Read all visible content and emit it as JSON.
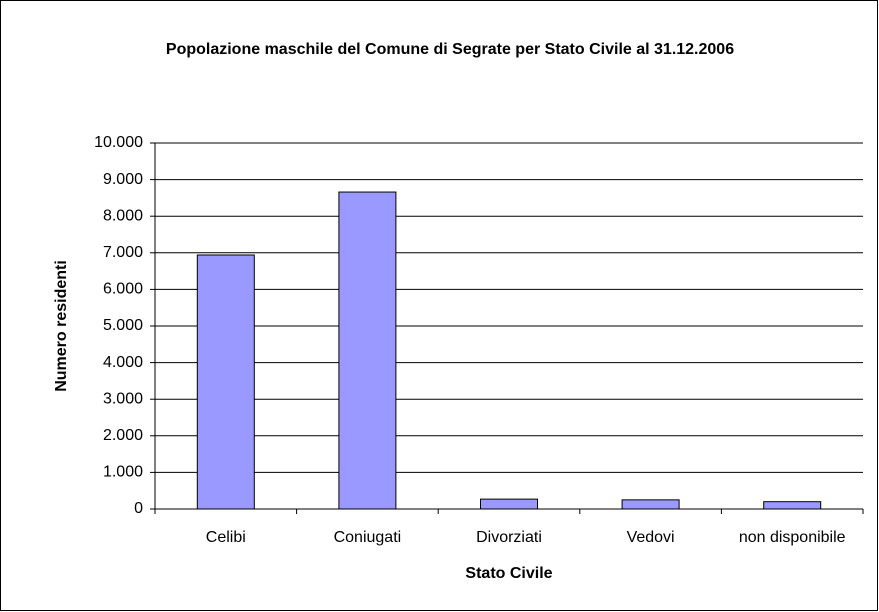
{
  "chart_data": {
    "type": "bar",
    "title": "Popolazione maschile del Comune di Segrate per Stato Civile al 31.12.2006",
    "x_label": "Stato Civile",
    "y_label": "Numero residenti",
    "categories": [
      "Celibi",
      "Coniugati",
      "Divorziati",
      "Vedovi",
      "non disponibile"
    ],
    "values": [
      6940,
      8660,
      270,
      250,
      200
    ],
    "color": "#9999ff",
    "ylim": [
      0,
      10000
    ],
    "yticks": [
      0,
      {
        "value": 1000,
        "label": "1.000"
      },
      {
        "value": 2000,
        "label": "2.000"
      },
      {
        "value": 3000,
        "label": "3.000"
      },
      {
        "value": 4000,
        "label": "4.000"
      },
      {
        "value": 5000,
        "label": "5.000"
      },
      {
        "value": 6000,
        "label": "6.000"
      },
      {
        "value": 7000,
        "label": "7.000"
      },
      {
        "value": 8000,
        "label": "8.000"
      },
      {
        "value": 9000,
        "label": "9.000"
      },
      {
        "value": 10000,
        "label": "10.000"
      }
    ],
    "grid": true
  }
}
